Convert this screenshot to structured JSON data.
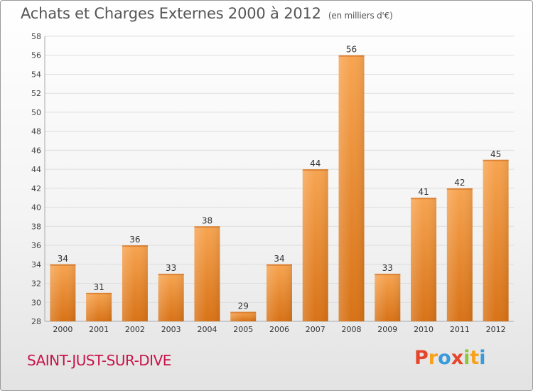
{
  "chart_data": {
    "type": "bar",
    "title": "Achats et Charges Externes 2000 à 2012",
    "subtitle": "(en milliers d'€)",
    "xlabel": "",
    "ylabel": "",
    "categories": [
      "2000",
      "2001",
      "2002",
      "2003",
      "2004",
      "2005",
      "2006",
      "2007",
      "2008",
      "2009",
      "2010",
      "2011",
      "2012"
    ],
    "values": [
      34,
      31,
      36,
      33,
      38,
      29,
      34,
      44,
      56,
      33,
      41,
      42,
      45
    ],
    "ylim": [
      28,
      58
    ],
    "yticks": [
      28,
      30,
      32,
      34,
      36,
      38,
      40,
      42,
      44,
      46,
      48,
      50,
      52,
      54,
      56,
      58
    ],
    "grid": true,
    "legend": "none",
    "bar_color": "#f0983a"
  },
  "commune": "SAINT-JUST-SUR-DIVE",
  "logo": {
    "text": "Proxiti",
    "colors": [
      "#e5462b",
      "#f7a21b",
      "#3b9ad9",
      "#e5462b",
      "#8cc63f",
      "#f7a21b",
      "#3b9ad9"
    ]
  }
}
